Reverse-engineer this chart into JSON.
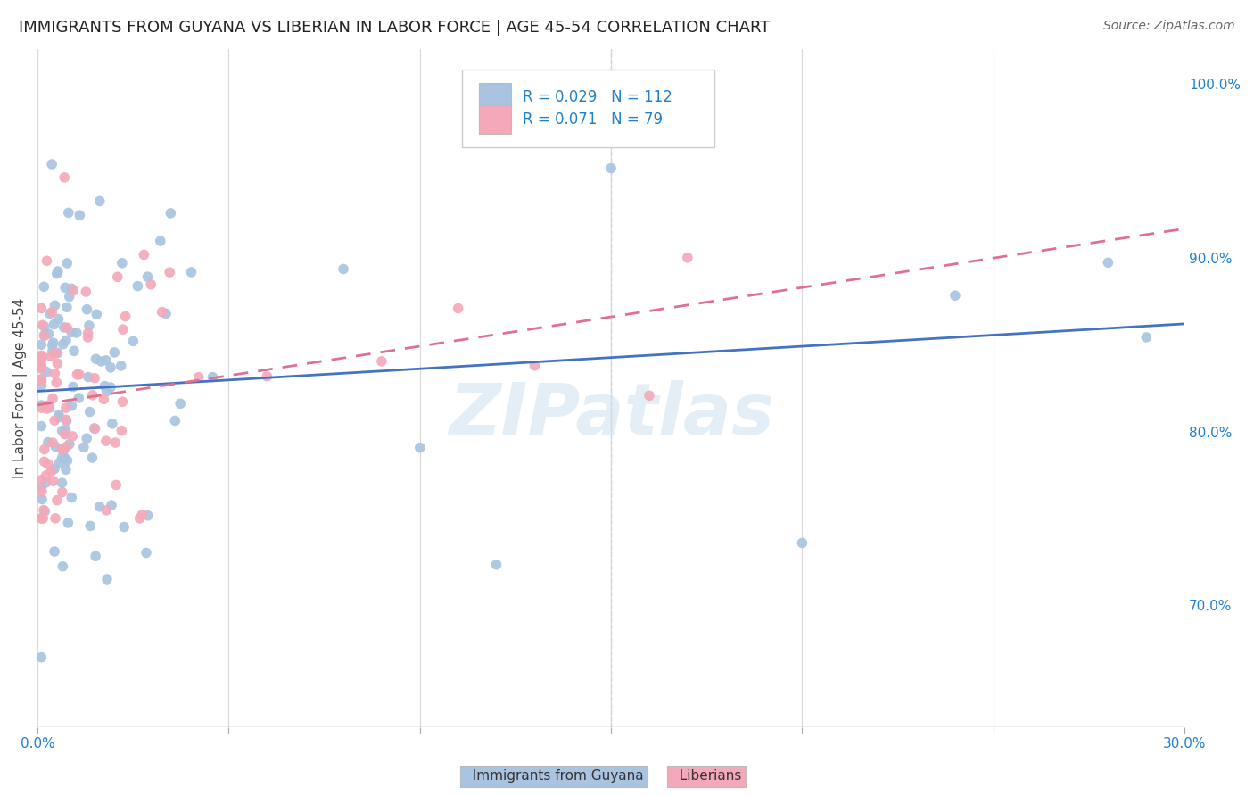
{
  "title": "IMMIGRANTS FROM GUYANA VS LIBERIAN IN LABOR FORCE | AGE 45-54 CORRELATION CHART",
  "source": "Source: ZipAtlas.com",
  "ylabel": "In Labor Force | Age 45-54",
  "xlim": [
    0.0,
    0.3
  ],
  "ylim": [
    0.63,
    1.02
  ],
  "yticks": [
    0.7,
    0.8,
    0.9,
    1.0
  ],
  "ytick_labels": [
    "70.0%",
    "80.0%",
    "90.0%",
    "100.0%"
  ],
  "xticks": [
    0.0,
    0.05,
    0.1,
    0.15,
    0.2,
    0.25,
    0.3
  ],
  "xtick_labels": [
    "0.0%",
    "",
    "",
    "",
    "",
    "",
    "30.0%"
  ],
  "guyana_R": 0.029,
  "guyana_N": 112,
  "liberia_R": 0.071,
  "liberia_N": 79,
  "guyana_color": "#a8c4e0",
  "liberia_color": "#f4a8b8",
  "guyana_line_color": "#4472c4",
  "liberia_line_color": "#e07090",
  "legend_R_color": "#2080d0",
  "watermark": "ZIPatlas",
  "background_color": "#ffffff",
  "grid_color": "#d9d9d9",
  "title_fontsize": 13,
  "axis_color": "#2080d0",
  "legend_box_color": "#ffffff",
  "legend_border_color": "#cccccc"
}
